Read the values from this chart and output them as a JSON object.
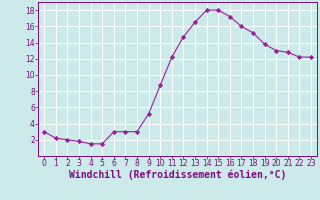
{
  "x": [
    0,
    1,
    2,
    3,
    4,
    5,
    6,
    7,
    8,
    9,
    10,
    11,
    12,
    13,
    14,
    15,
    16,
    17,
    18,
    19,
    20,
    21,
    22,
    23
  ],
  "y": [
    3.0,
    2.2,
    2.0,
    1.8,
    1.5,
    1.5,
    3.0,
    3.0,
    3.0,
    5.2,
    8.7,
    12.2,
    14.7,
    16.5,
    18.0,
    18.0,
    17.2,
    16.0,
    15.2,
    13.8,
    13.0,
    12.8,
    12.2,
    12.2
  ],
  "line_color": "#9b1f9b",
  "marker": "D",
  "marker_size": 2.2,
  "bg_color": "#cceaea",
  "grid_color": "#ffffff",
  "xlabel": "Windchill (Refroidissement éolien,°C)",
  "xlabel_color": "#7b0a7b",
  "xlim": [
    -0.5,
    23.5
  ],
  "ylim": [
    0,
    19
  ],
  "yticks": [
    2,
    4,
    6,
    8,
    10,
    12,
    14,
    16,
    18
  ],
  "xticks": [
    0,
    1,
    2,
    3,
    4,
    5,
    6,
    7,
    8,
    9,
    10,
    11,
    12,
    13,
    14,
    15,
    16,
    17,
    18,
    19,
    20,
    21,
    22,
    23
  ],
  "tick_color": "#7b0a7b",
  "tick_fontsize": 5.5,
  "xlabel_fontsize": 7.0,
  "spine_color": "#7b0a7b",
  "linewidth": 0.8
}
